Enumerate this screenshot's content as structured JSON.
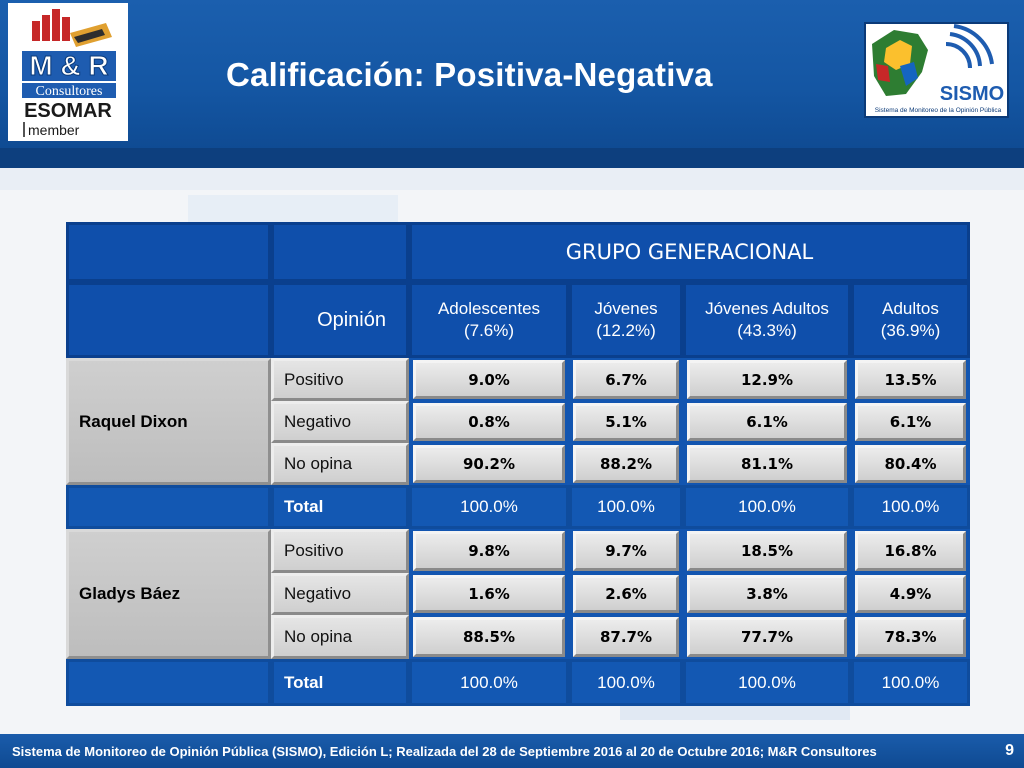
{
  "header": {
    "title": "Calificación: Positiva-Negativa",
    "logo_left": {
      "line1": "M & R",
      "line2": "Consultores",
      "line3": "ESOMAR",
      "line4": "member"
    },
    "logo_right": {
      "name": "SISMO",
      "caption": "Sistema de Monitoreo de la Opinión Pública"
    }
  },
  "table": {
    "group_title": "GRUPO GENERACIONAL",
    "opinion_label": "Opinión",
    "columns": [
      {
        "name": "Adolescentes",
        "share": "(7.6%)"
      },
      {
        "name": "Jóvenes",
        "share": "(12.2%)"
      },
      {
        "name": "Jóvenes Adultos",
        "share": "(43.3%)"
      },
      {
        "name": "Adultos",
        "share": "(36.9%)"
      }
    ],
    "blocks": [
      {
        "name": "Raquel Dixon",
        "rows": [
          {
            "label": "Positivo",
            "values": [
              "9.0%",
              "6.7%",
              "12.9%",
              "13.5%"
            ]
          },
          {
            "label": "Negativo",
            "values": [
              "0.8%",
              "5.1%",
              "6.1%",
              "6.1%"
            ]
          },
          {
            "label": "No opina",
            "values": [
              "90.2%",
              "88.2%",
              "81.1%",
              "80.4%"
            ]
          }
        ],
        "total": {
          "label": "Total",
          "values": [
            "100.0%",
            "100.0%",
            "100.0%",
            "100.0%"
          ]
        }
      },
      {
        "name": "Gladys Báez",
        "rows": [
          {
            "label": "Positivo",
            "values": [
              "9.8%",
              "9.7%",
              "18.5%",
              "16.8%"
            ]
          },
          {
            "label": "Negativo",
            "values": [
              "1.6%",
              "2.6%",
              "3.8%",
              "4.9%"
            ]
          },
          {
            "label": "No opina",
            "values": [
              "88.5%",
              "87.7%",
              "77.7%",
              "78.3%"
            ]
          }
        ],
        "total": {
          "label": "Total",
          "values": [
            "100.0%",
            "100.0%",
            "100.0%",
            "100.0%"
          ]
        }
      }
    ]
  },
  "footer": {
    "text": "Sistema de Monitoreo de Opinión Pública (SISMO), Edición L; Realizada del 28 de Septiembre 2016 al 20 de Octubre 2016; M&R Consultores",
    "page": "9"
  },
  "colors": {
    "brand_blue": "#1456a3",
    "header_dark": "#0d3f7e",
    "cell_gray": "#d4d4d4"
  }
}
